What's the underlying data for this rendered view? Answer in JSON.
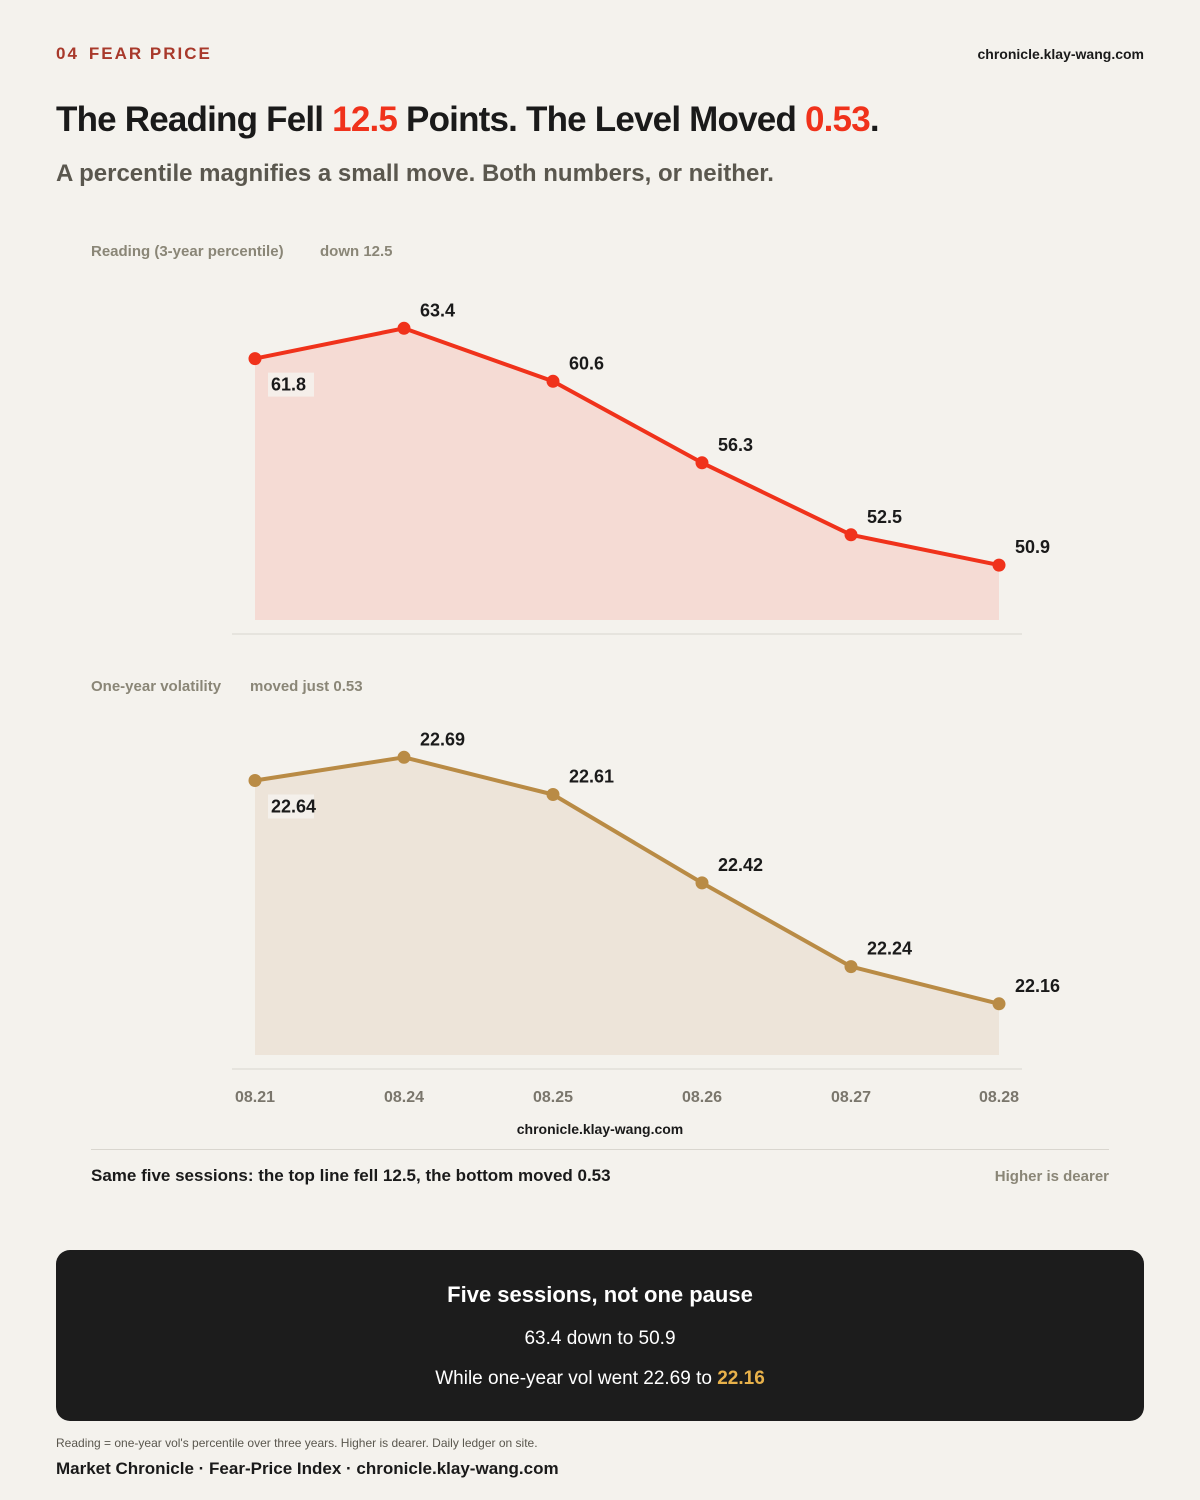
{
  "header": {
    "section_number": "04",
    "section_label": "FEAR PRICE",
    "site": "chronicle.klay-wang.com"
  },
  "headline": {
    "part1": "The Reading Fell ",
    "highlight1": "12.5",
    "part2": " Points. The Level Moved ",
    "highlight2": "0.53",
    "part3": "."
  },
  "subhead": "A percentile magnifies a small move. Both numbers, or neither.",
  "colors": {
    "accent_red": "#f0321b",
    "accent_gold": "#b98b45",
    "callout_accent": "#e8b14a",
    "panel_dark": "#1c1c1c"
  },
  "chart_data": [
    {
      "type": "area",
      "title": "Reading (3-year percentile)",
      "subtitle": "down 12.5",
      "categories": [
        "08.21",
        "08.24",
        "08.25",
        "08.26",
        "08.27",
        "08.28"
      ],
      "series": [
        {
          "values": [
            61.8,
            63.4,
            60.6,
            56.3,
            52.5,
            50.9
          ]
        }
      ],
      "data_labels": [
        "61.8",
        "63.4",
        "60.6",
        "56.3",
        "52.5",
        "50.9"
      ],
      "ylim": [
        48.0,
        65.0
      ],
      "grid": false,
      "color": "#f0321b"
    },
    {
      "type": "area",
      "title": "One-year volatility",
      "subtitle": "moved just 0.53",
      "categories": [
        "08.21",
        "08.24",
        "08.25",
        "08.26",
        "08.27",
        "08.28"
      ],
      "series": [
        {
          "values": [
            22.64,
            22.69,
            22.61,
            22.42,
            22.24,
            22.16
          ]
        }
      ],
      "data_labels": [
        "22.64",
        "22.69",
        "22.61",
        "22.42",
        "22.24",
        "22.16"
      ],
      "ylim": [
        22.05,
        22.74
      ],
      "grid": false,
      "color": "#b98b45"
    }
  ],
  "chart_site": "chronicle.klay-wang.com",
  "caption": {
    "left": "Same five sessions: the top line fell 12.5, the bottom moved 0.53",
    "right": "Higher is dearer"
  },
  "callout": {
    "title": "Five sessions, not one pause",
    "line1": "63.4 down to 50.9",
    "line2_prefix": "While one-year vol went 22.69 to ",
    "line2_accent": "22.16"
  },
  "footnote": "Reading = one-year vol's percentile over three years. Higher is dearer. Daily ledger on site.",
  "footer": "Market Chronicle · Fear-Price Index · chronicle.klay-wang.com"
}
